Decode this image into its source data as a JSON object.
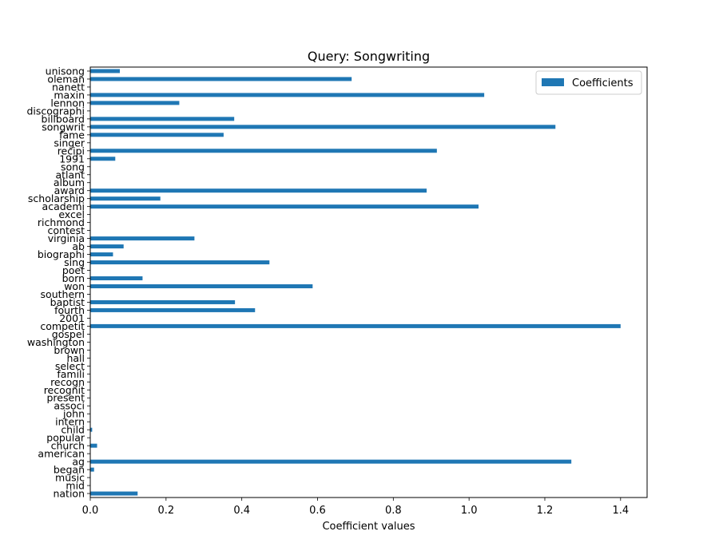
{
  "chart_data": {
    "type": "bar",
    "orientation": "horizontal",
    "title": "Query: Songwriting",
    "xlabel": "Coefficient values",
    "ylabel": "",
    "xlim": [
      0,
      1.47
    ],
    "xticks": [
      "0.0",
      "0.2",
      "0.4",
      "0.6",
      "0.8",
      "1.0",
      "1.2",
      "1.4"
    ],
    "grid": false,
    "legend": "top-right",
    "bar_color": "#1f77b4",
    "series": [
      {
        "name": "Coefficients",
        "categories": [
          "unisong",
          "oleman",
          "nanett",
          "maxin",
          "lennon",
          "discographi",
          "billboard",
          "songwrit",
          "fame",
          "singer",
          "recipi",
          "1991",
          "song",
          "atlant",
          "album",
          "award",
          "scholarship",
          "academi",
          "excel",
          "richmond",
          "contest",
          "virginia",
          "ab",
          "biographi",
          "sing",
          "poet",
          "born",
          "won",
          "southern",
          "baptist",
          "fourth",
          "2001",
          "competit",
          "gospel",
          "washington",
          "brown",
          "hall",
          "select",
          "famili",
          "recogn",
          "recognit",
          "present",
          "associ",
          "john",
          "intern",
          "child",
          "popular",
          "church",
          "american",
          "ag",
          "began",
          "music",
          "mid",
          "nation"
        ],
        "values": [
          0.078,
          0.69,
          0.0,
          1.04,
          0.235,
          0.0,
          0.38,
          1.228,
          0.352,
          0.0,
          0.915,
          0.066,
          0.0,
          0.0,
          0.0,
          0.888,
          0.185,
          1.025,
          0.0,
          0.0,
          0.0,
          0.275,
          0.088,
          0.06,
          0.473,
          0.0,
          0.138,
          0.587,
          0.0,
          0.382,
          0.435,
          0.0,
          1.4,
          0.0,
          0.0,
          0.0,
          0.0,
          0.0,
          0.0,
          0.0,
          0.0,
          0.0,
          0.0,
          0.0,
          0.0,
          0.005,
          0.0,
          0.018,
          0.0,
          1.27,
          0.01,
          0.0,
          0.0,
          0.125
        ]
      }
    ]
  }
}
